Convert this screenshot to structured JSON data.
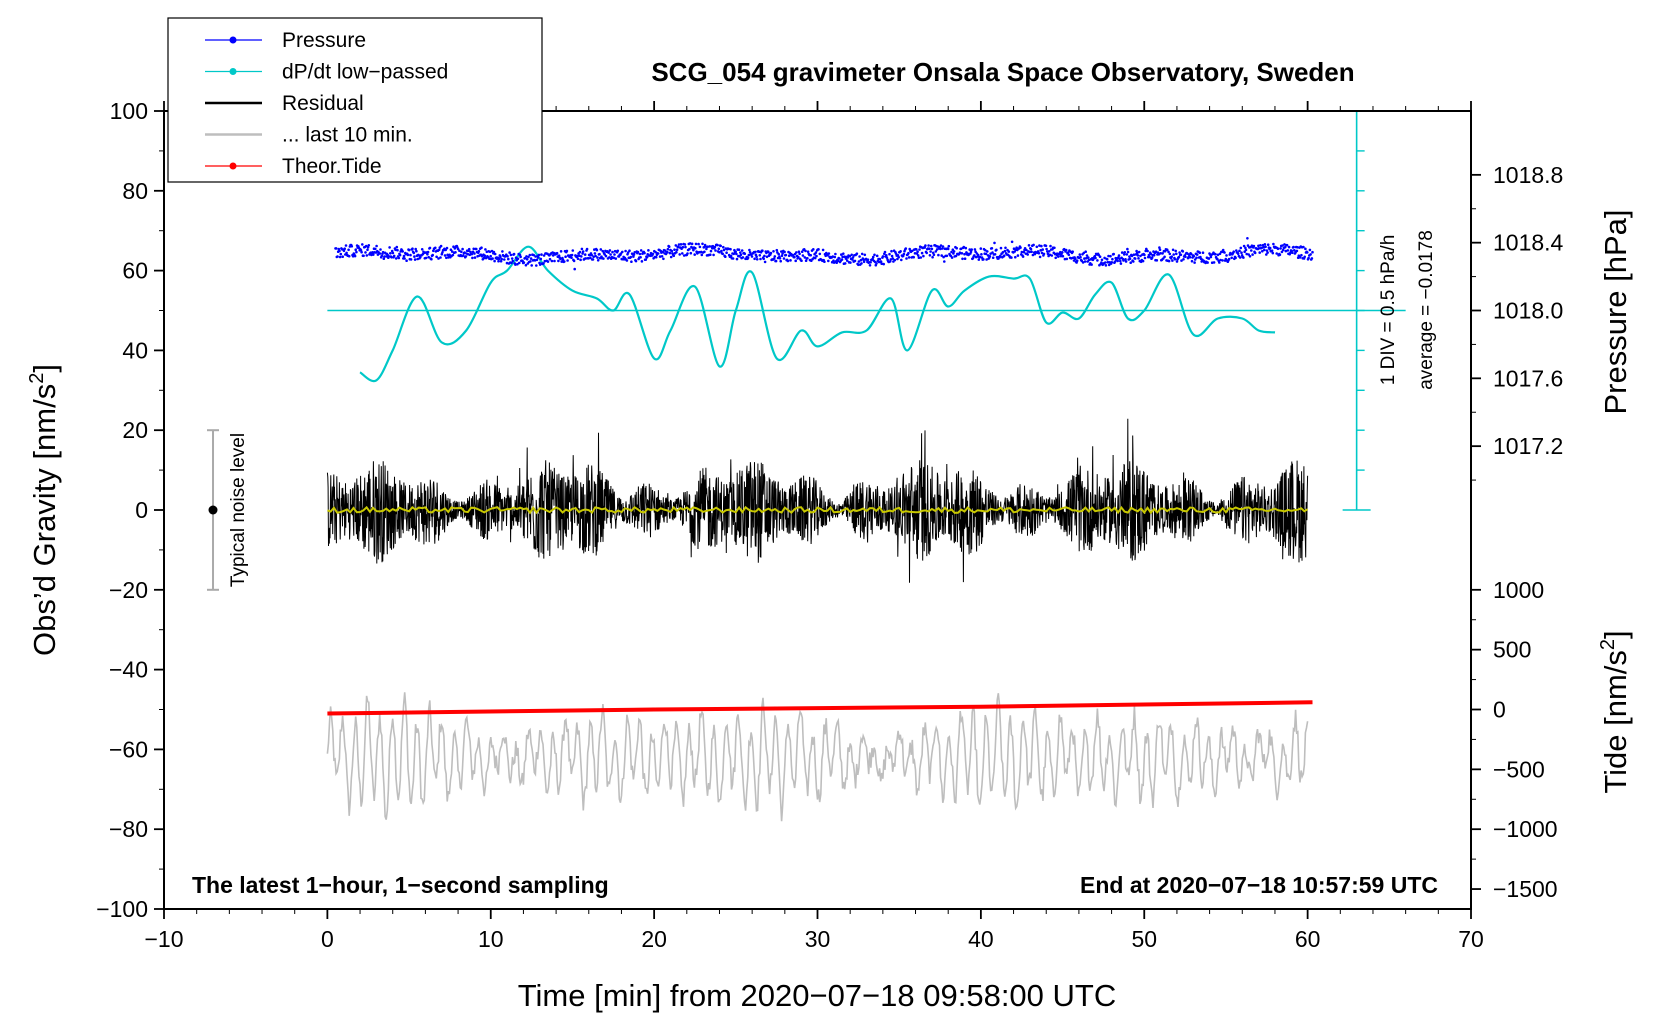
{
  "chart_data": {
    "type": "line",
    "title": "SCG_054 gravimeter Onsala Space Observatory, Sweden",
    "xlabel": "Time [min] from 2020−07−18 09:58:00 UTC",
    "ylabel": "Obs’d Gravity [nm/s²]",
    "ylabel_main": "Obs’d Gravity [nm/s",
    "ylabel_sup": "2",
    "ylabel_end": "]",
    "ylabel_pressure": "Pressure [hPa]",
    "ylabel_tide_main": "Tide [nm/s",
    "ylabel_tide_sup": "2",
    "ylabel_tide_end": "]",
    "xlim": [
      -10,
      70
    ],
    "ylim": [
      -100,
      100
    ],
    "x_ticks": [
      -10,
      0,
      10,
      20,
      30,
      40,
      50,
      60,
      70
    ],
    "x_tick_labels": [
      "−10",
      "0",
      "10",
      "20",
      "30",
      "40",
      "50",
      "60",
      "70"
    ],
    "y_ticks": [
      -100,
      -80,
      -60,
      -40,
      -20,
      0,
      20,
      40,
      60,
      80,
      100
    ],
    "y_tick_labels": [
      "−100",
      "−80",
      "−60",
      "−40",
      "−20",
      "0",
      "20",
      "40",
      "60",
      "80",
      "100"
    ],
    "pressure_axis": {
      "ticks": [
        1017.2,
        1017.6,
        1018.0,
        1018.4,
        1018.8
      ],
      "tick_labels": [
        "1017.2",
        "1017.6",
        "1018.0",
        "1018.4",
        "1018.8"
      ],
      "gravity_at_1018": 50,
      "gravity_per_hpa": 42.5
    },
    "tide_axis": {
      "ticks": [
        -1500,
        -1000,
        -500,
        0,
        500,
        1000
      ],
      "tick_labels": [
        "−1500",
        "−1000",
        "−500",
        "0",
        "500",
        "1000"
      ],
      "gravity_at_0": -50,
      "gravity_per_unit": 0.03
    },
    "legend": [
      {
        "label": "Pressure",
        "color": "#0000ff",
        "style": "line-dot"
      },
      {
        "label": "dP/dt low−passed",
        "color": "#00c8c8",
        "style": "line-dot"
      },
      {
        "label": "Residual",
        "color": "#000000",
        "style": "line"
      },
      {
        "label": "... last 10 min.",
        "color": "#bebebe",
        "style": "line"
      },
      {
        "label": "Theor.Tide",
        "color": "#ff0000",
        "style": "line-dot"
      }
    ],
    "series": [
      {
        "name": "Pressure",
        "color": "#0000ff",
        "x_range": [
          0.5,
          60.3
        ],
        "mean": 64,
        "spread": 1.5
      },
      {
        "name": "dP/dt low-passed",
        "color": "#00c8c8",
        "x": [
          2.0,
          3.0,
          4.0,
          5.5,
          7.0,
          8.5,
          10.0,
          11.0,
          12.3,
          13.5,
          15.0,
          16.5,
          17.5,
          18.5,
          20.0,
          21.0,
          22.5,
          24.0,
          25.0,
          26.0,
          27.5,
          29.0,
          30.0,
          31.5,
          33.0,
          34.5,
          35.5,
          37.0,
          38.0,
          39.0,
          40.5,
          42.0,
          43.0,
          44.0,
          45.0,
          46.0,
          47.0,
          48.0,
          49.0,
          50.0,
          51.5,
          53.0,
          54.5,
          56.0,
          57.0,
          58.0
        ],
        "y": [
          34.5,
          32.5,
          40,
          53.5,
          42,
          45,
          57,
          60,
          66,
          60,
          55,
          53,
          50,
          54,
          38,
          45,
          56,
          36,
          50,
          59.5,
          38,
          45,
          41,
          44.5,
          45,
          53,
          40,
          55,
          51,
          55,
          58.5,
          58,
          58,
          47,
          49.5,
          48,
          54,
          57,
          48,
          50,
          59,
          44,
          48,
          48,
          45,
          44.5
        ]
      },
      {
        "name": "Residual",
        "color": "#000000",
        "x_range": [
          0.0,
          60.0
        ],
        "amplitude": 13,
        "peak_max": 26
      },
      {
        "name": "Residual smoothed",
        "color": "#c8c800",
        "x_range": [
          0.0,
          60.0
        ],
        "level": 0
      },
      {
        "name": "... last 10 min.",
        "color": "#bebebe",
        "x_range": [
          0.0,
          60.0
        ],
        "center": -62,
        "amplitude": 12
      },
      {
        "name": "Theor.Tide",
        "color": "#ff0000",
        "x": [
          0.0,
          20.0,
          40.0,
          60.3
        ],
        "y": [
          -51,
          -50,
          -49.3,
          -48.2
        ]
      }
    ],
    "noise_level": {
      "label": "Typical noise level",
      "x": -7,
      "y": 0,
      "y_range": [
        -20,
        20
      ]
    },
    "div_note": {
      "line1": "1 DIV = 0.5 hPa/h",
      "line2": "average = −0.0178",
      "reference_level": 50,
      "scale_top": 100,
      "scale_bottom": 0
    },
    "corner_left": "The latest 1−hour, 1−second sampling",
    "corner_right": "End at 2020−07−18 10:57:59 UTC"
  }
}
